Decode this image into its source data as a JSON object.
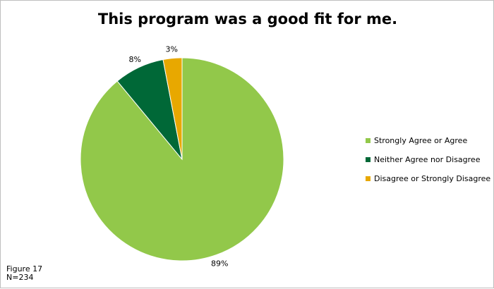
{
  "chart_data": {
    "type": "pie",
    "title": "This program was a good fit for me.",
    "categories": [
      "Strongly Agree or Agree",
      "Neither Agree nor Disagree",
      "Disagree or Strongly Disagree"
    ],
    "values": [
      89,
      8,
      3
    ],
    "data_labels": [
      "89%",
      "8%",
      "3%"
    ],
    "colors": [
      "#92c84a",
      "#006837",
      "#e8a800"
    ],
    "legend_position": "right"
  },
  "footnote": {
    "figure": "Figure 17",
    "n": "N=234"
  }
}
